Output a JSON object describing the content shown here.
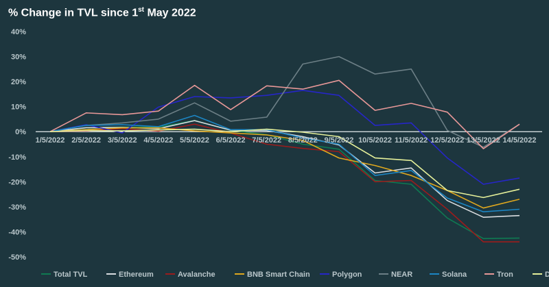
{
  "title_main": "% Change in TVL since 1",
  "title_sup": "st",
  "title_tail": " May 2022",
  "colors": {
    "background": "#1d363e",
    "zero_line": "#e6ecee",
    "grid": "#2c4750"
  },
  "chart_data": {
    "type": "line",
    "title": "% Change in TVL since 1st May 2022",
    "xlabel": "",
    "ylabel": "",
    "ylim": [
      -50,
      40
    ],
    "yticks": [
      40,
      30,
      20,
      10,
      0,
      -10,
      -20,
      -30,
      -40,
      -50
    ],
    "ytick_labels": [
      "40%",
      "30%",
      "20%",
      "10%",
      "0%",
      "-10%",
      "-20%",
      "-30%",
      "-40%",
      "-50%"
    ],
    "categories": [
      "1/5/2022",
      "2/5/2022",
      "3/5/2022",
      "4/5/2022",
      "5/5/2022",
      "6/5/2022",
      "7/5/2022",
      "8/5/2022",
      "9/5/2022",
      "10/5/2022",
      "11/5/2022",
      "12/5/2022",
      "13/5/2022",
      "14/5/2022"
    ],
    "legend_position": "bottom",
    "grid": false,
    "series": [
      {
        "name": "Total TVL",
        "color": "#0f7a52",
        "values": [
          0,
          1.5,
          1.8,
          1.8,
          4.5,
          0.5,
          -1.2,
          -5.0,
          -7.0,
          -19.5,
          -21.0,
          -34.5,
          -42.7,
          -42.5
        ]
      },
      {
        "name": "Ethereum",
        "color": "#d9dde0",
        "values": [
          0,
          1.6,
          1.7,
          1.2,
          4.4,
          0.6,
          0.5,
          -2.0,
          -5.3,
          -16.5,
          -14.5,
          -27.5,
          -34.2,
          -33.5
        ]
      },
      {
        "name": "Avalanche",
        "color": "#9b1c1c",
        "values": [
          0,
          0.3,
          1.2,
          0.2,
          3.0,
          -0.5,
          -5.0,
          -6.7,
          -8.0,
          -20.0,
          -19.5,
          -31.0,
          -44.0,
          -44.0
        ]
      },
      {
        "name": "BNB Smart Chain",
        "color": "#e0a81e",
        "values": [
          0,
          0.8,
          1.5,
          1.5,
          0.3,
          -0.5,
          -1.3,
          -3.5,
          -10.5,
          -13.5,
          -17.5,
          -23.5,
          -30.5,
          -27.0
        ]
      },
      {
        "name": "Polygon",
        "color": "#2626c8",
        "values": [
          0,
          2.8,
          -0.5,
          9.8,
          14.0,
          13.5,
          14.5,
          16.5,
          14.5,
          2.5,
          3.5,
          -10.5,
          -21.0,
          -18.5
        ]
      },
      {
        "name": "NEAR",
        "color": "#6c7f86",
        "values": [
          0,
          2.5,
          3.5,
          5.0,
          11.5,
          4.2,
          5.8,
          27.0,
          30.0,
          23.0,
          25.0,
          0.5,
          -6.2,
          3.0
        ]
      },
      {
        "name": "Solana",
        "color": "#1c86c4",
        "values": [
          0,
          2.5,
          2.8,
          2.0,
          6.5,
          0.8,
          0.8,
          -2.5,
          -5.0,
          -17.5,
          -15.5,
          -26.5,
          -32.0,
          -31.0
        ]
      },
      {
        "name": "Tron",
        "color": "#e89898",
        "values": [
          0,
          7.5,
          6.8,
          8.2,
          18.5,
          8.8,
          18.3,
          17.0,
          20.5,
          8.5,
          11.3,
          7.8,
          -6.8,
          3.0
        ]
      },
      {
        "name": "DeFi Chain",
        "color": "#e6f09a",
        "values": [
          0,
          0.5,
          0.3,
          0.7,
          1.0,
          0.0,
          1.0,
          -0.2,
          -2.0,
          -10.5,
          -11.5,
          -23.5,
          -26.3,
          -23.0
        ]
      }
    ]
  }
}
